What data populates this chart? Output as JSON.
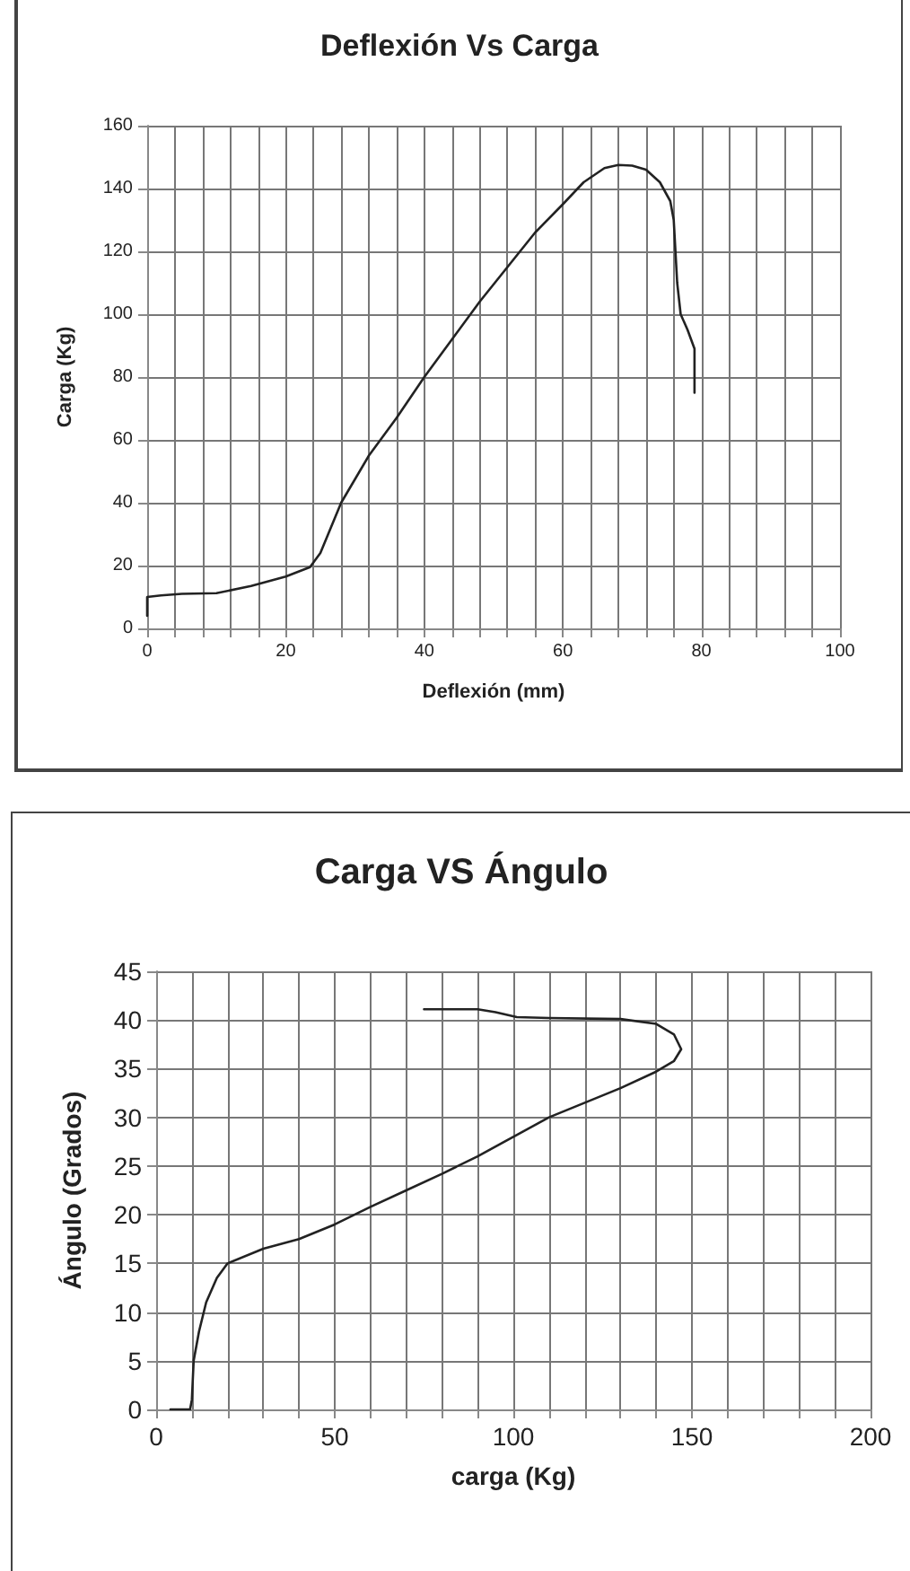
{
  "chart_data": [
    {
      "type": "line",
      "title": "Deflexión Vs Carga",
      "xlabel": "Deflexión (mm)",
      "ylabel": "Carga (Kg)",
      "x": [
        0,
        0,
        2,
        5,
        10,
        15,
        20,
        23.5,
        25,
        28,
        32,
        36,
        40,
        44,
        48,
        52,
        56,
        60,
        63,
        66,
        68,
        70,
        72,
        74,
        75.5,
        76,
        76.5,
        77,
        78,
        79,
        79
      ],
      "series": [
        {
          "color": "#222222",
          "values": [
            4,
            10,
            10.5,
            11,
            11.2,
            13.5,
            16.5,
            19.5,
            24,
            40,
            55,
            67,
            80,
            92,
            104,
            115,
            126,
            135,
            142,
            146.5,
            147.5,
            147.3,
            146,
            142,
            136,
            130,
            110,
            100,
            95,
            89,
            75
          ]
        }
      ],
      "xlim": [
        0,
        100
      ],
      "ylim": [
        0,
        160
      ],
      "xticks": [
        0,
        {
          "value": 4,
          "label": null
        },
        {
          "value": 8,
          "label": null
        },
        {
          "value": 12,
          "label": null
        },
        {
          "value": 16,
          "label": null
        },
        20,
        {
          "value": 24,
          "label": null
        },
        {
          "value": 28,
          "label": null
        },
        {
          "value": 32,
          "label": null
        },
        {
          "value": 36,
          "label": null
        },
        40,
        {
          "value": 44,
          "label": null
        },
        {
          "value": 48,
          "label": null
        },
        {
          "value": 52,
          "label": null
        },
        {
          "value": 56,
          "label": null
        },
        60,
        {
          "value": 64,
          "label": null
        },
        {
          "value": 68,
          "label": null
        },
        {
          "value": 72,
          "label": null
        },
        {
          "value": 76,
          "label": null
        },
        80,
        {
          "value": 84,
          "label": null
        },
        {
          "value": 88,
          "label": null
        },
        {
          "value": 92,
          "label": null
        },
        {
          "value": 96,
          "label": null
        },
        100
      ],
      "yticks": [
        0,
        20,
        40,
        60,
        80,
        100,
        120,
        140,
        160
      ],
      "grid": true,
      "marker": "none",
      "line_style": "solid"
    },
    {
      "type": "line",
      "title": "Carga VS Ángulo",
      "xlabel": "carga (Kg)",
      "ylabel": "Ángulo (Grados)",
      "x": [
        4,
        9.5,
        10,
        10.5,
        12,
        14,
        17,
        20,
        30,
        40,
        50,
        60,
        70,
        80,
        90,
        100,
        110,
        120,
        130,
        140,
        145,
        147,
        145,
        140,
        130,
        110,
        101,
        95,
        90,
        75
      ],
      "series": [
        {
          "color": "#222222",
          "values": [
            0,
            0,
            1,
            5,
            8,
            11,
            13.5,
            15,
            16.5,
            17.5,
            19,
            20.8,
            22.5,
            24.2,
            26,
            28,
            30,
            31.5,
            33,
            34.7,
            35.8,
            37,
            38.5,
            39.6,
            40.1,
            40.2,
            40.3,
            40.8,
            41.1,
            41.1
          ]
        }
      ],
      "xlim": [
        0,
        200
      ],
      "ylim": [
        0,
        45
      ],
      "xticks": [
        0,
        {
          "value": 10,
          "label": null
        },
        {
          "value": 20,
          "label": null
        },
        {
          "value": 30,
          "label": null
        },
        {
          "value": 40,
          "label": null
        },
        50,
        {
          "value": 60,
          "label": null
        },
        {
          "value": 70,
          "label": null
        },
        {
          "value": 80,
          "label": null
        },
        {
          "value": 90,
          "label": null
        },
        100,
        {
          "value": 110,
          "label": null
        },
        {
          "value": 120,
          "label": null
        },
        {
          "value": 130,
          "label": null
        },
        {
          "value": 140,
          "label": null
        },
        150,
        {
          "value": 160,
          "label": null
        },
        {
          "value": 170,
          "label": null
        },
        {
          "value": 180,
          "label": null
        },
        {
          "value": 190,
          "label": null
        },
        200
      ],
      "yticks": [
        0,
        5,
        10,
        15,
        20,
        25,
        30,
        35,
        40,
        45
      ],
      "grid": true,
      "marker": "none",
      "line_style": "solid"
    }
  ]
}
